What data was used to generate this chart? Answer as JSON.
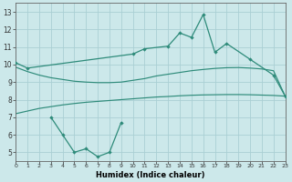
{
  "xlabel": "Humidex (Indice chaleur)",
  "color": "#2e8b7a",
  "bg_color": "#cce8ea",
  "grid_color": "#aacfd4",
  "xlim": [
    0,
    23
  ],
  "ylim": [
    4.5,
    13.5
  ],
  "yticks": [
    5,
    6,
    7,
    8,
    9,
    10,
    11,
    12,
    13
  ],
  "line_top_x": [
    0,
    1,
    10,
    11,
    13,
    14,
    15,
    16,
    17,
    18,
    20,
    22,
    23
  ],
  "line_top_y": [
    10.1,
    9.8,
    10.6,
    10.9,
    11.05,
    11.8,
    11.55,
    12.85,
    10.7,
    11.2,
    10.3,
    9.4,
    8.2
  ],
  "line_bot_x": [
    3,
    4,
    5,
    6,
    7,
    8,
    9
  ],
  "line_bot_y": [
    7.0,
    6.0,
    5.0,
    5.2,
    4.75,
    5.0,
    6.7
  ],
  "env_upper_x": [
    0,
    1,
    2,
    3,
    4,
    5,
    6,
    7,
    8,
    9,
    10,
    11,
    12,
    13,
    14,
    15,
    16,
    17,
    18,
    19,
    20,
    21,
    22,
    23
  ],
  "env_upper_y": [
    9.85,
    9.6,
    9.4,
    9.25,
    9.15,
    9.05,
    9.0,
    8.97,
    8.97,
    9.0,
    9.1,
    9.2,
    9.35,
    9.45,
    9.55,
    9.65,
    9.72,
    9.78,
    9.82,
    9.83,
    9.8,
    9.75,
    9.65,
    8.2
  ],
  "env_lower_x": [
    0,
    1,
    2,
    3,
    4,
    5,
    6,
    7,
    8,
    9,
    10,
    11,
    12,
    13,
    14,
    15,
    16,
    17,
    18,
    19,
    20,
    21,
    22,
    23
  ],
  "env_lower_y": [
    7.2,
    7.35,
    7.5,
    7.6,
    7.7,
    7.78,
    7.85,
    7.9,
    7.95,
    8.0,
    8.05,
    8.1,
    8.15,
    8.18,
    8.22,
    8.25,
    8.27,
    8.28,
    8.29,
    8.29,
    8.28,
    8.26,
    8.24,
    8.2
  ]
}
